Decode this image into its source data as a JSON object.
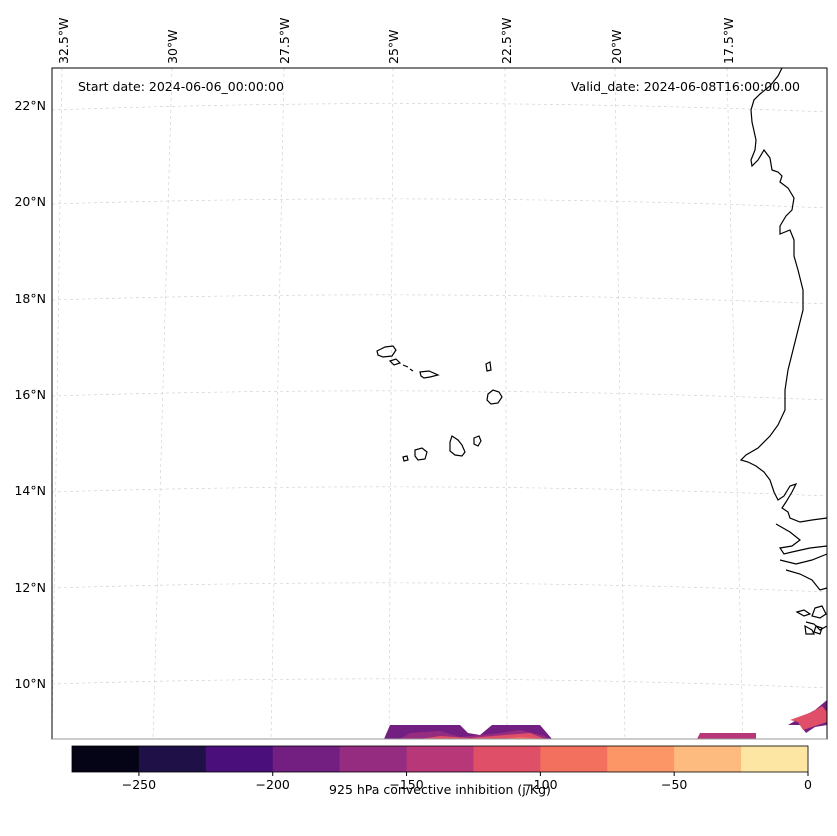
{
  "header": {
    "start_date": "Start date: 2024-06-06_00:00:00",
    "valid_date": "Valid_date: 2024-06-08T16:00:00.00"
  },
  "longitude_labels": [
    "32.5°W",
    "30°W",
    "27.5°W",
    "25°W",
    "22.5°W",
    "20°W",
    "17.5°W"
  ],
  "latitude_labels": [
    "22°N",
    "20°N",
    "18°N",
    "16°N",
    "14°N",
    "12°N",
    "10°N"
  ],
  "colorbar": {
    "label": "925 hPa convective inhibition (j/Kg)",
    "levels": [
      -275,
      -250,
      -225,
      -200,
      -175,
      -150,
      -125,
      -100,
      -75,
      -50,
      -25,
      0
    ],
    "tick_values": [
      -250,
      -200,
      -150,
      -100,
      -50,
      0
    ],
    "tick_labels": [
      "−250",
      "−200",
      "−150",
      "−100",
      "−50",
      "0"
    ],
    "colors": [
      "#050416",
      "#1f1147",
      "#4a0f7a",
      "#721f81",
      "#962c80",
      "#b73779",
      "#e04f68",
      "#f3705f",
      "#fc9667",
      "#febb80",
      "#fde6a4"
    ]
  },
  "chart_data": {
    "type": "map-contour",
    "variable": "925 hPa convective inhibition",
    "units": "j/Kg",
    "lon_range": [
      -33.0,
      -15.5
    ],
    "lat_range": [
      9.0,
      22.8
    ],
    "features": [
      "Cape Verde islands",
      "West African coastline"
    ]
  }
}
